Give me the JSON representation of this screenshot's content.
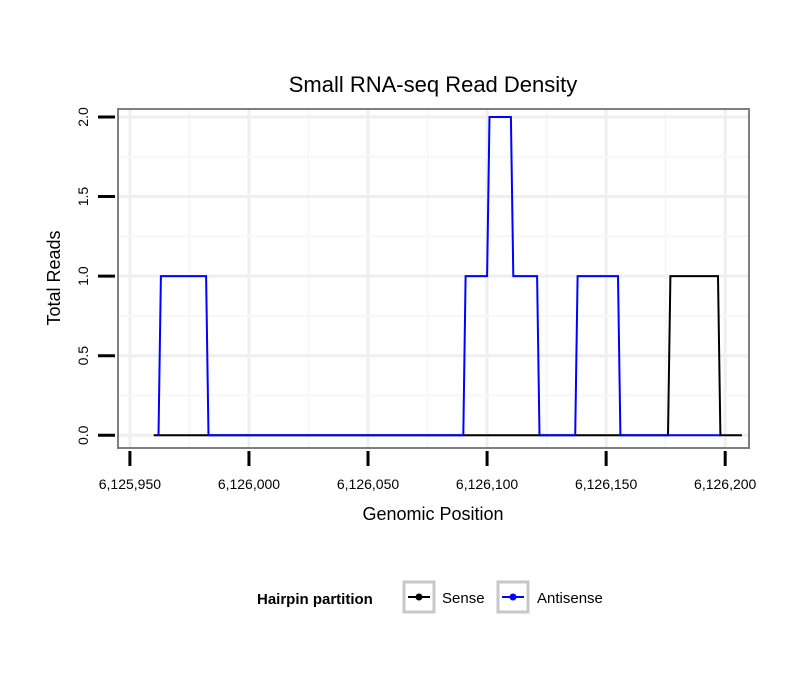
{
  "chart_data": {
    "type": "line",
    "title": "Small RNA-seq Read Density",
    "xlabel": "Genomic Position",
    "ylabel": "Total Reads",
    "xlim": [
      6125945,
      6126210
    ],
    "ylim": [
      -0.08,
      2.05
    ],
    "x_ticks": [
      6125950,
      6126000,
      6126050,
      6126100,
      6126150,
      6126200
    ],
    "x_tick_labels": [
      "6,125,950",
      "6,126,000",
      "6,126,050",
      "6,126,100",
      "6,126,150",
      "6,126,200"
    ],
    "y_ticks": [
      0,
      0.5,
      1,
      1.5,
      2
    ],
    "y_tick_labels": [
      "0.0",
      "0.5",
      "1.0",
      "1.5",
      "2.0"
    ],
    "grid": true,
    "legend": {
      "title": "Hairpin partition",
      "position": "bottom"
    },
    "series": [
      {
        "name": "Sense",
        "color": "#000000",
        "x": [
          6125960,
          6126176,
          6126177,
          6126197,
          6126198,
          6126207
        ],
        "y": [
          0,
          0,
          1,
          1,
          0,
          0
        ]
      },
      {
        "name": "Antisense",
        "color": "#0000ff",
        "x": [
          6125962,
          6125963,
          6125982,
          6125983,
          6126090,
          6126091,
          6126100,
          6126101,
          6126110,
          6126111,
          6126121,
          6126122,
          6126137,
          6126138,
          6126155,
          6126156,
          6126176,
          6126198
        ],
        "y": [
          0,
          1,
          1,
          0,
          0,
          1,
          1,
          2,
          2,
          1,
          1,
          0,
          0,
          1,
          1,
          0,
          0,
          0
        ]
      }
    ]
  }
}
